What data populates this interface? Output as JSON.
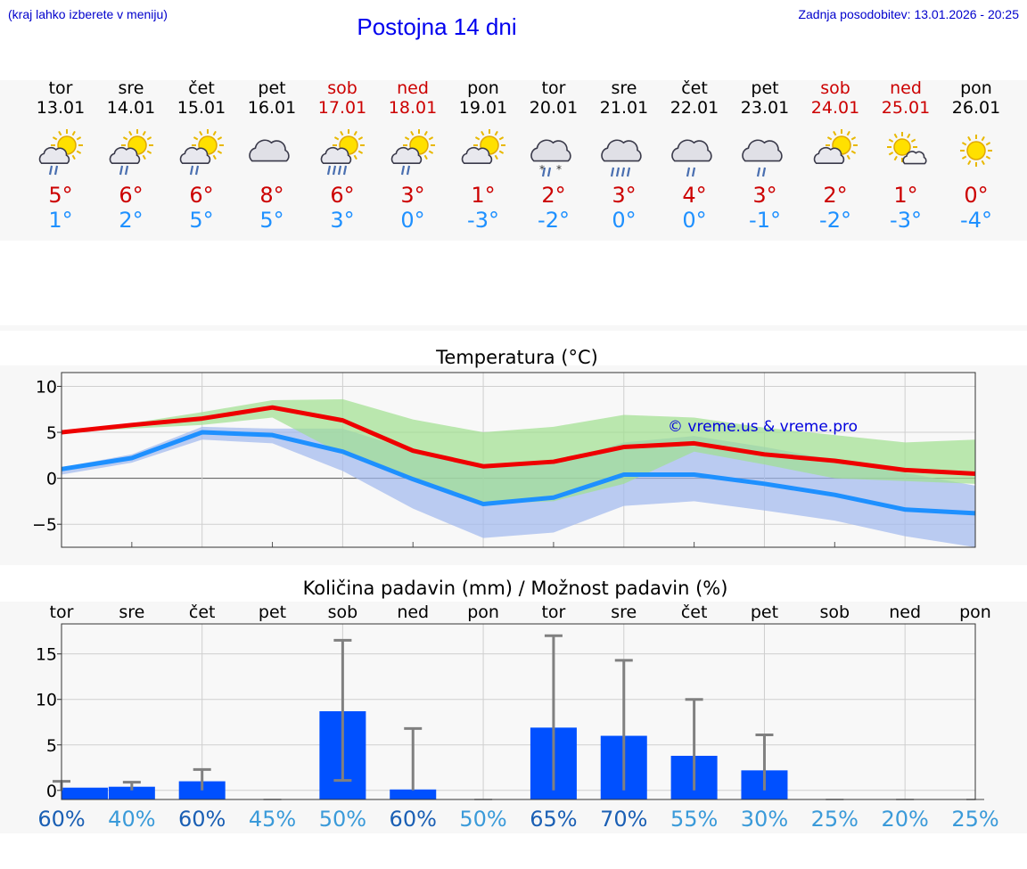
{
  "header": {
    "hint": "(kraj lahko izberete v meniju)",
    "title": "Postojna 14 dni",
    "updated": "Zadnja posodobitev: 13.01.2026 - 20:25"
  },
  "colors": {
    "tmax": "#cc0000",
    "tmin": "#1e90ff",
    "weekend": "#cc0000",
    "red_line": "#ee0000",
    "blue_line": "#1e90ff",
    "green_band": "#9fdf8f",
    "blue_band": "#9fb8ee",
    "bar": "#0050ff",
    "whisker": "#808080"
  },
  "days": [
    {
      "name": "tor",
      "date": "13.01",
      "weekend": false,
      "icon": "sun-cloud-rain-icon",
      "tmax": "5°",
      "tmin": "1°"
    },
    {
      "name": "sre",
      "date": "14.01",
      "weekend": false,
      "icon": "sun-cloud-rain-icon",
      "tmax": "6°",
      "tmin": "2°"
    },
    {
      "name": "čet",
      "date": "15.01",
      "weekend": false,
      "icon": "sun-cloud-rain-icon",
      "tmax": "6°",
      "tmin": "5°"
    },
    {
      "name": "pet",
      "date": "16.01",
      "weekend": false,
      "icon": "cloud-icon",
      "tmax": "8°",
      "tmin": "5°"
    },
    {
      "name": "sob",
      "date": "17.01",
      "weekend": true,
      "icon": "sun-cloud-heavy-rain-icon",
      "tmax": "6°",
      "tmin": "3°"
    },
    {
      "name": "ned",
      "date": "18.01",
      "weekend": true,
      "icon": "sun-cloud-rain-icon",
      "tmax": "3°",
      "tmin": "0°"
    },
    {
      "name": "pon",
      "date": "19.01",
      "weekend": false,
      "icon": "sun-cloud-icon",
      "tmax": "1°",
      "tmin": "-3°"
    },
    {
      "name": "tor",
      "date": "20.01",
      "weekend": false,
      "icon": "cloud-sleet-icon",
      "tmax": "2°",
      "tmin": "-2°"
    },
    {
      "name": "sre",
      "date": "21.01",
      "weekend": false,
      "icon": "cloud-heavy-rain-icon",
      "tmax": "3°",
      "tmin": "0°"
    },
    {
      "name": "čet",
      "date": "22.01",
      "weekend": false,
      "icon": "cloud-rain-icon",
      "tmax": "4°",
      "tmin": "0°"
    },
    {
      "name": "pet",
      "date": "23.01",
      "weekend": false,
      "icon": "cloud-rain-icon",
      "tmax": "3°",
      "tmin": "-1°"
    },
    {
      "name": "sob",
      "date": "24.01",
      "weekend": true,
      "icon": "sun-cloud-icon",
      "tmax": "2°",
      "tmin": "-2°"
    },
    {
      "name": "ned",
      "date": "25.01",
      "weekend": true,
      "icon": "sun-small-cloud-icon",
      "tmax": "1°",
      "tmin": "-3°"
    },
    {
      "name": "pon",
      "date": "26.01",
      "weekend": false,
      "icon": "sun-icon",
      "tmax": "0°",
      "tmin": "-4°"
    }
  ],
  "chart_data": [
    {
      "type": "line",
      "title": "Temperatura (°C)",
      "watermark": "© vreme.us & vreme.pro",
      "ylim": [
        -7.5,
        11.5
      ],
      "yticks": [
        10,
        5,
        0,
        -5
      ],
      "ytick_labels": [
        "10",
        "5",
        "0",
        "−5"
      ],
      "x": [
        0,
        1,
        2,
        3,
        4,
        5,
        6,
        7,
        8,
        9,
        10,
        11,
        12,
        13
      ],
      "series": [
        {
          "name": "max",
          "values": [
            5.0,
            5.8,
            6.5,
            7.7,
            6.3,
            3.0,
            1.3,
            1.8,
            3.4,
            3.8,
            2.6,
            1.9,
            0.9,
            0.5
          ],
          "band_high": [
            5.2,
            6.0,
            7.2,
            8.5,
            8.6,
            6.4,
            5.0,
            5.6,
            6.9,
            6.6,
            5.5,
            4.7,
            3.9,
            4.2
          ],
          "band_low": [
            5.0,
            5.4,
            5.8,
            6.6,
            2.6,
            -0.2,
            -2.8,
            -2.5,
            -0.6,
            2.9,
            1.5,
            0.0,
            -0.3,
            -0.6
          ]
        },
        {
          "name": "min",
          "values": [
            1.0,
            2.2,
            5.0,
            4.7,
            2.9,
            -0.1,
            -2.8,
            -2.1,
            0.4,
            0.4,
            -0.6,
            -1.8,
            -3.4,
            -3.8
          ],
          "band_high": [
            1.2,
            2.6,
            5.6,
            5.4,
            5.4,
            3.0,
            1.4,
            1.6,
            3.9,
            4.6,
            3.4,
            2.0,
            0.6,
            -0.8
          ],
          "band_low": [
            0.4,
            1.7,
            4.2,
            3.8,
            0.8,
            -3.3,
            -6.5,
            -5.9,
            -3.0,
            -2.5,
            -3.5,
            -4.6,
            -6.3,
            -7.5
          ]
        }
      ]
    },
    {
      "type": "bar",
      "title": "Količina padavin (mm) / Možnost padavin (%)",
      "categories": [
        "tor",
        "sre",
        "čet",
        "pet",
        "sob",
        "ned",
        "pon",
        "tor",
        "sre",
        "čet",
        "pet",
        "sob",
        "ned",
        "pon"
      ],
      "ylim": [
        -1,
        18.3
      ],
      "yticks": [
        15,
        10,
        5,
        0
      ],
      "ytick_labels": [
        "15",
        "10",
        "5",
        "0"
      ],
      "values": [
        0.3,
        0.4,
        1.0,
        0,
        8.7,
        0.1,
        0,
        6.9,
        6.0,
        3.8,
        2.2,
        0,
        0,
        0
      ],
      "whisker_low": [
        0,
        0,
        0,
        0,
        1.1,
        0,
        0,
        0,
        0,
        0,
        0,
        0,
        0,
        0
      ],
      "whisker_high": [
        1.0,
        0.9,
        2.3,
        0,
        16.5,
        6.8,
        0,
        17.0,
        14.3,
        10.0,
        6.1,
        0,
        0,
        0
      ],
      "probability": [
        "60%",
        "40%",
        "60%",
        "45%",
        "50%",
        "60%",
        "50%",
        "65%",
        "70%",
        "55%",
        "30%",
        "25%",
        "20%",
        "25%"
      ],
      "probability_values": [
        60,
        40,
        60,
        45,
        50,
        60,
        50,
        65,
        70,
        55,
        30,
        25,
        20,
        25
      ]
    }
  ]
}
